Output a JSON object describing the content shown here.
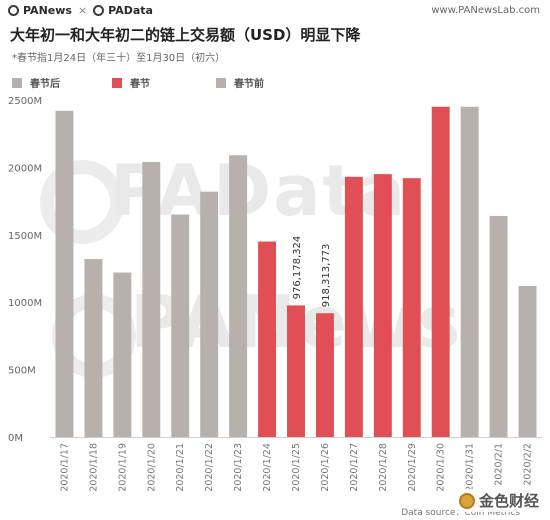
{
  "header": {
    "brand_left": "PANews",
    "brand_sep": "×",
    "brand_right": "PAData",
    "site": "www.PANewsLab.com"
  },
  "watermarks": [
    "PAData",
    "PANews"
  ],
  "footer": {
    "source": "Data source：Coin Metrics",
    "jinse_label": "金色财经"
  },
  "colors": {
    "after": "#b7b0ad",
    "festival": "#e04f55",
    "before": "#b7b0ad"
  },
  "chart_data": {
    "type": "bar",
    "title": "大年初一和大年初二的链上交易额（USD）明显下降",
    "subtitle": "*春节指1月24日（年三十）至1月30日（初六）",
    "legend": [
      {
        "key": "after",
        "label": "春节后"
      },
      {
        "key": "festival",
        "label": "春节"
      },
      {
        "key": "before",
        "label": "春节前"
      }
    ],
    "legend_placement": "top-left",
    "grid": false,
    "ylim": [
      0,
      2500000000
    ],
    "yticks": [
      {
        "value": 0,
        "label": "0M"
      },
      {
        "value": 500000000,
        "label": "500M"
      },
      {
        "value": 1000000000,
        "label": "1000M"
      },
      {
        "value": 1500000000,
        "label": "1500M"
      },
      {
        "value": 2000000000,
        "label": "2000M"
      },
      {
        "value": 2500000000,
        "label": "2500M"
      }
    ],
    "categories": [
      "2020/1/17",
      "2020/1/18",
      "2020/1/19",
      "2020/1/20",
      "2020/1/21",
      "2020/1/22",
      "2020/1/23",
      "2020/1/24",
      "2020/1/25",
      "2020/1/26",
      "2020/1/27",
      "2020/1/28",
      "2020/1/29",
      "2020/1/30",
      "2020/1/31",
      "2020/2/1",
      "2020/2/2"
    ],
    "values": [
      2420000000,
      1320000000,
      1220000000,
      2040000000,
      1650000000,
      1820000000,
      2090000000,
      1450000000,
      976178324,
      918313773,
      1930000000,
      1950000000,
      1920000000,
      2450000000,
      2450000000,
      1640000000,
      1120000000
    ],
    "groups": [
      "before",
      "before",
      "before",
      "before",
      "before",
      "before",
      "before",
      "festival",
      "festival",
      "festival",
      "festival",
      "festival",
      "festival",
      "festival",
      "after",
      "after",
      "after"
    ],
    "data_labels": [
      {
        "index": 8,
        "text": "976,178,324"
      },
      {
        "index": 9,
        "text": "918,313,773"
      }
    ]
  }
}
